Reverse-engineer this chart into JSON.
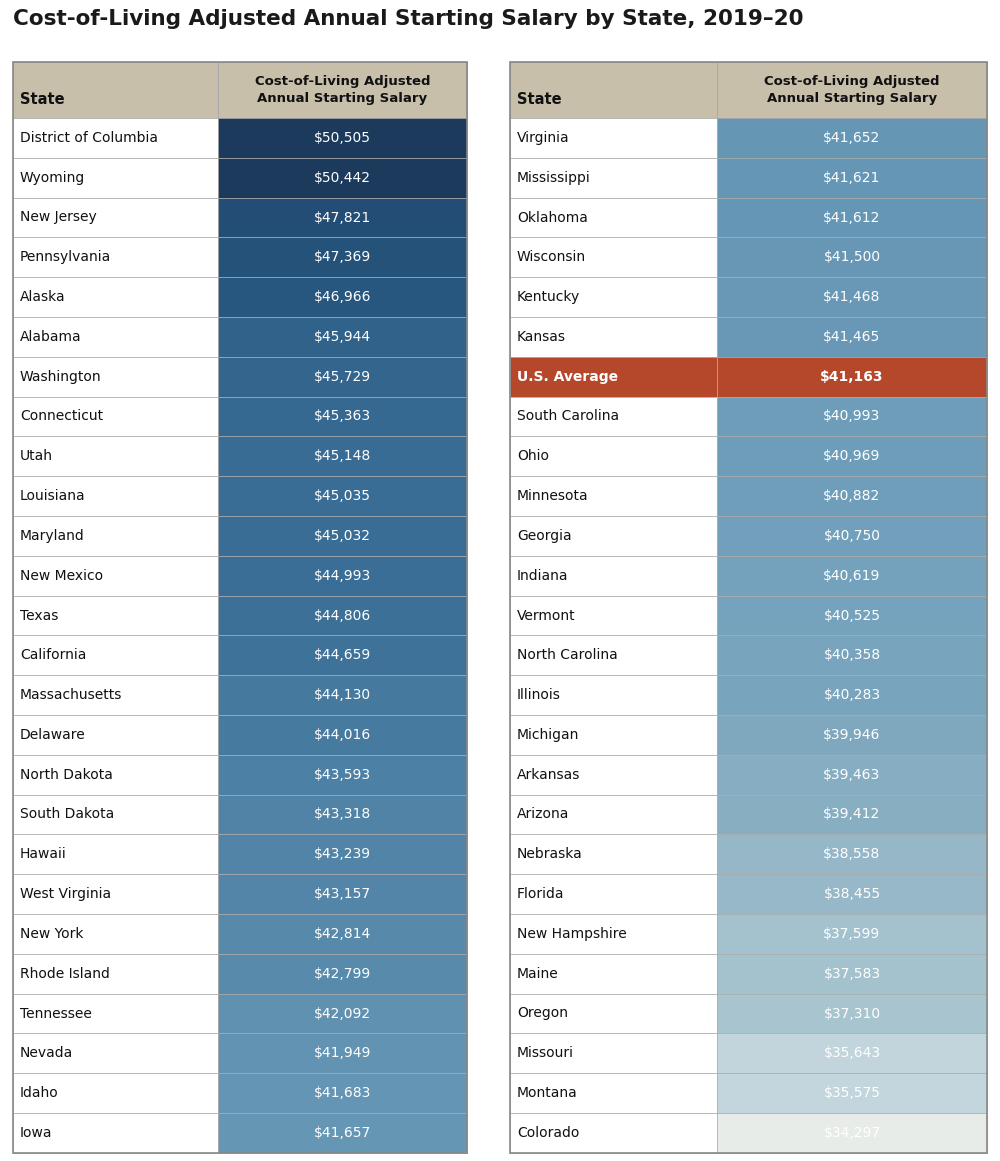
{
  "title": "Cost-of-Living Adjusted Annual Starting Salary by State, 2019–20",
  "left_table": [
    {
      "state": "District of Columbia",
      "salary": "$50,505",
      "value": 50505
    },
    {
      "state": "Wyoming",
      "salary": "$50,442",
      "value": 50442
    },
    {
      "state": "New Jersey",
      "salary": "$47,821",
      "value": 47821
    },
    {
      "state": "Pennsylvania",
      "salary": "$47,369",
      "value": 47369
    },
    {
      "state": "Alaska",
      "salary": "$46,966",
      "value": 46966
    },
    {
      "state": "Alabama",
      "salary": "$45,944",
      "value": 45944
    },
    {
      "state": "Washington",
      "salary": "$45,729",
      "value": 45729
    },
    {
      "state": "Connecticut",
      "salary": "$45,363",
      "value": 45363
    },
    {
      "state": "Utah",
      "salary": "$45,148",
      "value": 45148
    },
    {
      "state": "Louisiana",
      "salary": "$45,035",
      "value": 45035
    },
    {
      "state": "Maryland",
      "salary": "$45,032",
      "value": 45032
    },
    {
      "state": "New Mexico",
      "salary": "$44,993",
      "value": 44993
    },
    {
      "state": "Texas",
      "salary": "$44,806",
      "value": 44806
    },
    {
      "state": "California",
      "salary": "$44,659",
      "value": 44659
    },
    {
      "state": "Massachusetts",
      "salary": "$44,130",
      "value": 44130
    },
    {
      "state": "Delaware",
      "salary": "$44,016",
      "value": 44016
    },
    {
      "state": "North Dakota",
      "salary": "$43,593",
      "value": 43593
    },
    {
      "state": "South Dakota",
      "salary": "$43,318",
      "value": 43318
    },
    {
      "state": "Hawaii",
      "salary": "$43,239",
      "value": 43239
    },
    {
      "state": "West Virginia",
      "salary": "$43,157",
      "value": 43157
    },
    {
      "state": "New York",
      "salary": "$42,814",
      "value": 42814
    },
    {
      "state": "Rhode Island",
      "salary": "$42,799",
      "value": 42799
    },
    {
      "state": "Tennessee",
      "salary": "$42,092",
      "value": 42092
    },
    {
      "state": "Nevada",
      "salary": "$41,949",
      "value": 41949
    },
    {
      "state": "Idaho",
      "salary": "$41,683",
      "value": 41683
    },
    {
      "state": "Iowa",
      "salary": "$41,657",
      "value": 41657
    }
  ],
  "right_table": [
    {
      "state": "Virginia",
      "salary": "$41,652",
      "value": 41652,
      "is_average": false
    },
    {
      "state": "Mississippi",
      "salary": "$41,621",
      "value": 41621,
      "is_average": false
    },
    {
      "state": "Oklahoma",
      "salary": "$41,612",
      "value": 41612,
      "is_average": false
    },
    {
      "state": "Wisconsin",
      "salary": "$41,500",
      "value": 41500,
      "is_average": false
    },
    {
      "state": "Kentucky",
      "salary": "$41,468",
      "value": 41468,
      "is_average": false
    },
    {
      "state": "Kansas",
      "salary": "$41,465",
      "value": 41465,
      "is_average": false
    },
    {
      "state": "U.S. Average",
      "salary": "$41,163",
      "value": 41163,
      "is_average": true
    },
    {
      "state": "South Carolina",
      "salary": "$40,993",
      "value": 40993,
      "is_average": false
    },
    {
      "state": "Ohio",
      "salary": "$40,969",
      "value": 40969,
      "is_average": false
    },
    {
      "state": "Minnesota",
      "salary": "$40,882",
      "value": 40882,
      "is_average": false
    },
    {
      "state": "Georgia",
      "salary": "$40,750",
      "value": 40750,
      "is_average": false
    },
    {
      "state": "Indiana",
      "salary": "$40,619",
      "value": 40619,
      "is_average": false
    },
    {
      "state": "Vermont",
      "salary": "$40,525",
      "value": 40525,
      "is_average": false
    },
    {
      "state": "North Carolina",
      "salary": "$40,358",
      "value": 40358,
      "is_average": false
    },
    {
      "state": "Illinois",
      "salary": "$40,283",
      "value": 40283,
      "is_average": false
    },
    {
      "state": "Michigan",
      "salary": "$39,946",
      "value": 39946,
      "is_average": false
    },
    {
      "state": "Arkansas",
      "salary": "$39,463",
      "value": 39463,
      "is_average": false
    },
    {
      "state": "Arizona",
      "salary": "$39,412",
      "value": 39412,
      "is_average": false
    },
    {
      "state": "Nebraska",
      "salary": "$38,558",
      "value": 38558,
      "is_average": false
    },
    {
      "state": "Florida",
      "salary": "$38,455",
      "value": 38455,
      "is_average": false
    },
    {
      "state": "New Hampshire",
      "salary": "$37,599",
      "value": 37599,
      "is_average": false
    },
    {
      "state": "Maine",
      "salary": "$37,583",
      "value": 37583,
      "is_average": false
    },
    {
      "state": "Oregon",
      "salary": "$37,310",
      "value": 37310,
      "is_average": false
    },
    {
      "state": "Missouri",
      "salary": "$35,643",
      "value": 35643,
      "is_average": false
    },
    {
      "state": "Montana",
      "salary": "$35,575",
      "value": 35575,
      "is_average": false
    },
    {
      "state": "Colorado",
      "salary": "$34,297",
      "value": 34297,
      "is_average": false
    }
  ],
  "header_bg": "#c8bfaa",
  "white_bg": "#ffffff",
  "border_color": "#aaaaaa",
  "title_color": "#1a1a1a",
  "average_row_color": "#b5472a",
  "value_min": 34297,
  "value_max": 50505,
  "color_stops_val": [
    50505,
    49000,
    47000,
    45000,
    43000,
    41000,
    39000,
    37000,
    35000,
    34297
  ],
  "color_stops_hex": [
    "#1b3a5c",
    "#1e4268",
    "#27567e",
    "#3a6e96",
    "#5588aa",
    "#6e9dba",
    "#8fb3c5",
    "#adc8d2",
    "#cddce3",
    "#e8ece8"
  ]
}
